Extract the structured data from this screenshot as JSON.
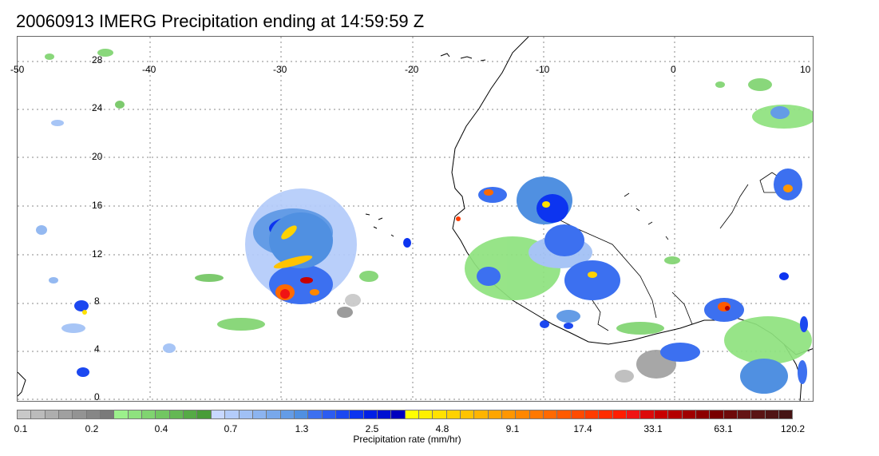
{
  "title": "20060913 IMERG Precipitation ending at 14:59:59 Z",
  "map": {
    "lon_labels": [
      "-50",
      "-40",
      "-30",
      "-20",
      "-10",
      "0",
      "10"
    ],
    "lat_labels": [
      "28",
      "24",
      "20",
      "16",
      "12",
      "8",
      "4",
      "0"
    ]
  },
  "legend": {
    "units_label": "Precipitation rate (mm/hr)",
    "tick_labels": [
      "0.1",
      "0.2",
      "0.4",
      "0.7",
      "1.3",
      "2.5",
      "4.8",
      "9.1",
      "17.4",
      "33.1",
      "63.1",
      "120.2"
    ],
    "colors": [
      "#c8c8c8",
      "#bbbbbb",
      "#aeaeae",
      "#a0a0a0",
      "#939393",
      "#868686",
      "#7a7a7a",
      "#9cf08c",
      "#8ee27e",
      "#80d470",
      "#72c662",
      "#64b854",
      "#56aa46",
      "#489c38",
      "#c8d8ff",
      "#b4ccfa",
      "#a0c0f5",
      "#8cb4f0",
      "#78a8eb",
      "#649ce6",
      "#5090e1",
      "#3c70f0",
      "#2c5cf0",
      "#1c48f0",
      "#0c34f0",
      "#0020e6",
      "#0010d2",
      "#0000be",
      "#ffff00",
      "#fff000",
      "#ffe100",
      "#ffd200",
      "#ffc300",
      "#ffb400",
      "#ffa500",
      "#ff9600",
      "#ff8700",
      "#ff7800",
      "#ff6900",
      "#ff5a00",
      "#ff4b00",
      "#ff3c00",
      "#ff2d00",
      "#ff1e00",
      "#f01414",
      "#dc0a0a",
      "#c80000",
      "#b40000",
      "#a00000",
      "#8c0000",
      "#780000",
      "#6e0a0a",
      "#641414",
      "#5a1414",
      "#501414",
      "#461414"
    ]
  }
}
